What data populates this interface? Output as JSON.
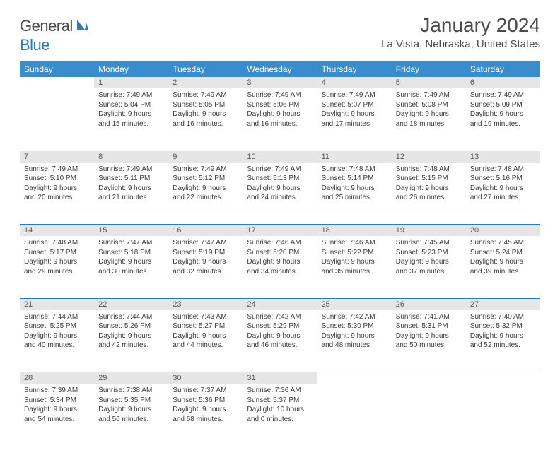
{
  "logo": {
    "textGray": "General",
    "textBlue": "Blue"
  },
  "title": "January 2024",
  "location": "La Vista, Nebraska, United States",
  "colors": {
    "headerBg": "#3a8ccc",
    "accent": "#2a78bd",
    "dayBg": "#e6e6e6",
    "text": "#3b3b3b"
  },
  "weekdays": [
    "Sunday",
    "Monday",
    "Tuesday",
    "Wednesday",
    "Thursday",
    "Friday",
    "Saturday"
  ],
  "startOffset": 1,
  "days": [
    {
      "n": 1,
      "sr": "7:49 AM",
      "ss": "5:04 PM",
      "dl": "9 hours and 15 minutes."
    },
    {
      "n": 2,
      "sr": "7:49 AM",
      "ss": "5:05 PM",
      "dl": "9 hours and 16 minutes."
    },
    {
      "n": 3,
      "sr": "7:49 AM",
      "ss": "5:06 PM",
      "dl": "9 hours and 16 minutes."
    },
    {
      "n": 4,
      "sr": "7:49 AM",
      "ss": "5:07 PM",
      "dl": "9 hours and 17 minutes."
    },
    {
      "n": 5,
      "sr": "7:49 AM",
      "ss": "5:08 PM",
      "dl": "9 hours and 18 minutes."
    },
    {
      "n": 6,
      "sr": "7:49 AM",
      "ss": "5:09 PM",
      "dl": "9 hours and 19 minutes."
    },
    {
      "n": 7,
      "sr": "7:49 AM",
      "ss": "5:10 PM",
      "dl": "9 hours and 20 minutes."
    },
    {
      "n": 8,
      "sr": "7:49 AM",
      "ss": "5:11 PM",
      "dl": "9 hours and 21 minutes."
    },
    {
      "n": 9,
      "sr": "7:49 AM",
      "ss": "5:12 PM",
      "dl": "9 hours and 22 minutes."
    },
    {
      "n": 10,
      "sr": "7:49 AM",
      "ss": "5:13 PM",
      "dl": "9 hours and 24 minutes."
    },
    {
      "n": 11,
      "sr": "7:48 AM",
      "ss": "5:14 PM",
      "dl": "9 hours and 25 minutes."
    },
    {
      "n": 12,
      "sr": "7:48 AM",
      "ss": "5:15 PM",
      "dl": "9 hours and 26 minutes."
    },
    {
      "n": 13,
      "sr": "7:48 AM",
      "ss": "5:16 PM",
      "dl": "9 hours and 27 minutes."
    },
    {
      "n": 14,
      "sr": "7:48 AM",
      "ss": "5:17 PM",
      "dl": "9 hours and 29 minutes."
    },
    {
      "n": 15,
      "sr": "7:47 AM",
      "ss": "5:18 PM",
      "dl": "9 hours and 30 minutes."
    },
    {
      "n": 16,
      "sr": "7:47 AM",
      "ss": "5:19 PM",
      "dl": "9 hours and 32 minutes."
    },
    {
      "n": 17,
      "sr": "7:46 AM",
      "ss": "5:20 PM",
      "dl": "9 hours and 34 minutes."
    },
    {
      "n": 18,
      "sr": "7:46 AM",
      "ss": "5:22 PM",
      "dl": "9 hours and 35 minutes."
    },
    {
      "n": 19,
      "sr": "7:45 AM",
      "ss": "5:23 PM",
      "dl": "9 hours and 37 minutes."
    },
    {
      "n": 20,
      "sr": "7:45 AM",
      "ss": "5:24 PM",
      "dl": "9 hours and 39 minutes."
    },
    {
      "n": 21,
      "sr": "7:44 AM",
      "ss": "5:25 PM",
      "dl": "9 hours and 40 minutes."
    },
    {
      "n": 22,
      "sr": "7:44 AM",
      "ss": "5:26 PM",
      "dl": "9 hours and 42 minutes."
    },
    {
      "n": 23,
      "sr": "7:43 AM",
      "ss": "5:27 PM",
      "dl": "9 hours and 44 minutes."
    },
    {
      "n": 24,
      "sr": "7:42 AM",
      "ss": "5:29 PM",
      "dl": "9 hours and 46 minutes."
    },
    {
      "n": 25,
      "sr": "7:42 AM",
      "ss": "5:30 PM",
      "dl": "9 hours and 48 minutes."
    },
    {
      "n": 26,
      "sr": "7:41 AM",
      "ss": "5:31 PM",
      "dl": "9 hours and 50 minutes."
    },
    {
      "n": 27,
      "sr": "7:40 AM",
      "ss": "5:32 PM",
      "dl": "9 hours and 52 minutes."
    },
    {
      "n": 28,
      "sr": "7:39 AM",
      "ss": "5:34 PM",
      "dl": "9 hours and 54 minutes."
    },
    {
      "n": 29,
      "sr": "7:38 AM",
      "ss": "5:35 PM",
      "dl": "9 hours and 56 minutes."
    },
    {
      "n": 30,
      "sr": "7:37 AM",
      "ss": "5:36 PM",
      "dl": "9 hours and 58 minutes."
    },
    {
      "n": 31,
      "sr": "7:36 AM",
      "ss": "5:37 PM",
      "dl": "10 hours and 0 minutes."
    }
  ],
  "labels": {
    "sunrise": "Sunrise:",
    "sunset": "Sunset:",
    "daylight": "Daylight:"
  }
}
